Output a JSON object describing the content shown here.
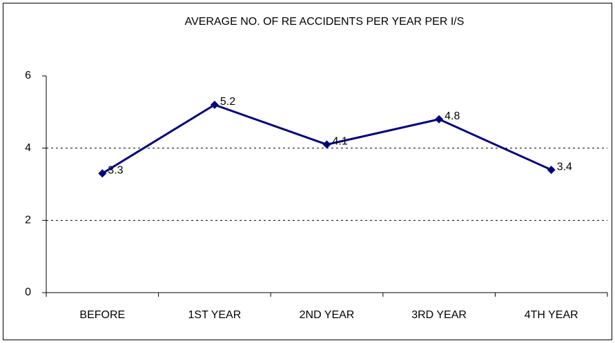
{
  "chart_data": {
    "type": "line",
    "title": "AVERAGE NO. OF RE ACCIDENTS PER YEAR PER I/S",
    "categories": [
      "BEFORE",
      "1ST YEAR",
      "2ND YEAR",
      "3RD YEAR",
      "4TH YEAR"
    ],
    "values": [
      3.3,
      5.2,
      4.1,
      4.8,
      3.4
    ],
    "color": "#000080",
    "ylim": [
      0,
      6
    ],
    "yticks": [
      0,
      2,
      4,
      6
    ],
    "grid": true
  }
}
